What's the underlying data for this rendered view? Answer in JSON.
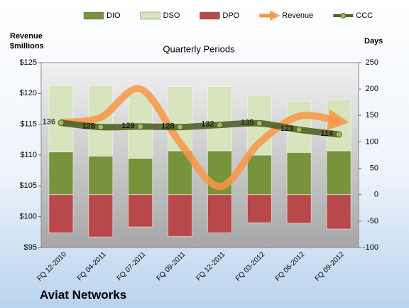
{
  "chart_data": {
    "type": "bar",
    "title": "Quarterly Periods",
    "y_label": "Revenue $millions",
    "y2_label": "Days",
    "company": "Aviat Networks",
    "categories": [
      "FQ 12-2010",
      "FQ 04-2011",
      "FQ 07-2011",
      "FQ 09-2011",
      "FQ 12-2011",
      "FQ 03-2012",
      "FQ 06-2012",
      "FQ 09-2012"
    ],
    "series": [
      {
        "name": "DIO",
        "color": "#77933c",
        "axis": "y2",
        "values": [
          81,
          73,
          69,
          83,
          83,
          75,
          80,
          83
        ]
      },
      {
        "name": "DSO",
        "color": "#d7e4bd",
        "axis": "y2",
        "values": [
          126,
          134,
          123,
          122,
          122,
          113,
          97,
          97
        ]
      },
      {
        "name": "DPO",
        "color": "#b9484a",
        "axis": "y2",
        "values": [
          -72,
          -80,
          -61,
          -79,
          -72,
          -53,
          -54,
          -65
        ]
      },
      {
        "name": "Revenue",
        "type": "line",
        "color": "#f79646",
        "values": [
          115.3,
          116.1,
          120.7,
          112.0,
          104.9,
          112.0,
          116.3,
          115.5
        ]
      },
      {
        "name": "CCC",
        "type": "line",
        "color": "#4f6228",
        "axis": "y2",
        "values": [
          136,
          128,
          129,
          128,
          132,
          135,
          123,
          114
        ]
      }
    ],
    "ylim": [
      95,
      125
    ],
    "yticks": [
      {
        "value": 95,
        "label": "$95"
      },
      {
        "value": 100,
        "label": "$100"
      },
      {
        "value": 105,
        "label": "$105"
      },
      {
        "value": 110,
        "label": "$110"
      },
      {
        "value": 115,
        "label": "$115"
      },
      {
        "value": 120,
        "label": "$120"
      },
      {
        "value": 125,
        "label": "$125"
      }
    ],
    "y2lim": [
      -100,
      250
    ],
    "y2ticks": [
      -100,
      -50,
      0,
      50,
      100,
      150,
      200,
      250
    ]
  }
}
